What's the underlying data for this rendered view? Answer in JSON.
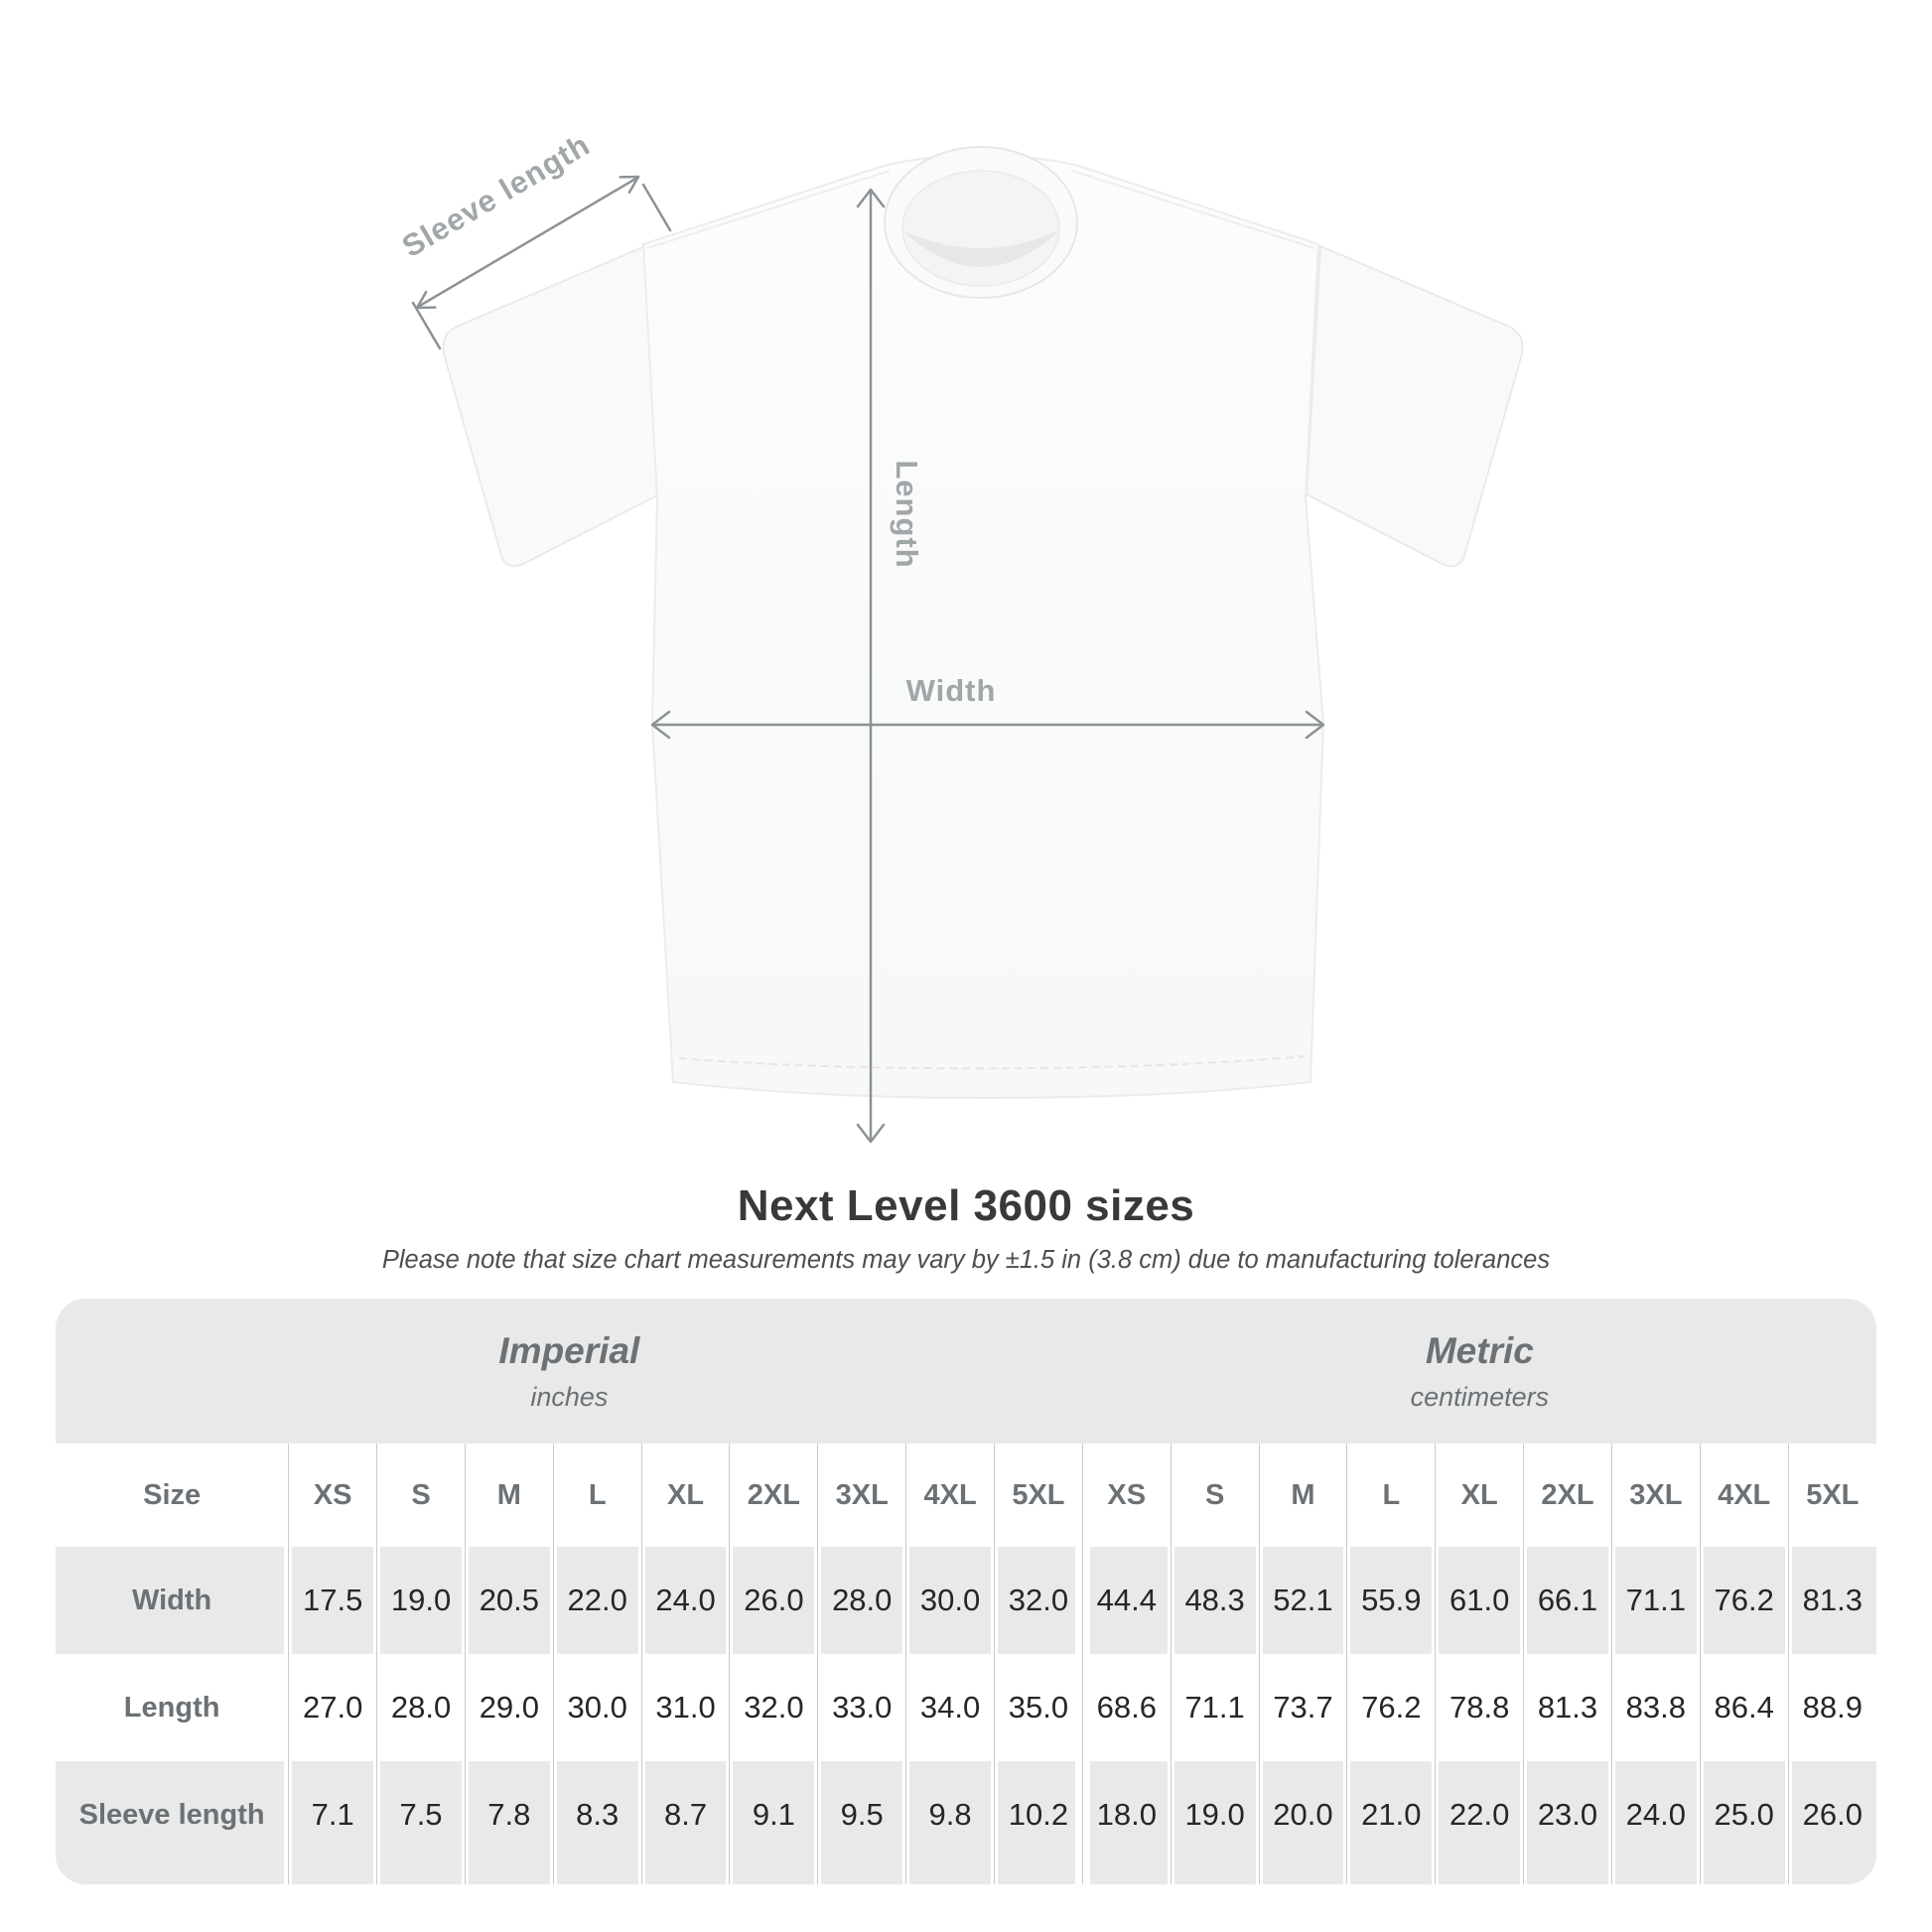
{
  "shirt_diagram": {
    "sleeve_length_label": "Sleeve length",
    "length_label": "Length",
    "width_label": "Width"
  },
  "heading": {
    "title": "Next Level 3600 sizes",
    "subtitle": "Please note that size chart measurements may vary by ±1.5 in (3.8 cm) due to manufacturing tolerances"
  },
  "chart_data": {
    "type": "table",
    "title": "Next Level 3600 sizes",
    "unit_groups": [
      {
        "label": "Imperial",
        "unit": "inches"
      },
      {
        "label": "Metric",
        "unit": "centimeters"
      }
    ],
    "size_column_header": "Size",
    "sizes": [
      "XS",
      "S",
      "M",
      "L",
      "XL",
      "2XL",
      "3XL",
      "4XL",
      "5XL"
    ],
    "rows": [
      {
        "label": "Width",
        "imperial": [
          "17.5",
          "19.0",
          "20.5",
          "22.0",
          "24.0",
          "26.0",
          "28.0",
          "30.0",
          "32.0"
        ],
        "metric": [
          "44.4",
          "48.3",
          "52.1",
          "55.9",
          "61.0",
          "66.1",
          "71.1",
          "76.2",
          "81.3"
        ]
      },
      {
        "label": "Length",
        "imperial": [
          "27.0",
          "28.0",
          "29.0",
          "30.0",
          "31.0",
          "32.0",
          "33.0",
          "34.0",
          "35.0"
        ],
        "metric": [
          "68.6",
          "71.1",
          "73.7",
          "76.2",
          "78.8",
          "81.3",
          "83.8",
          "86.4",
          "88.9"
        ]
      },
      {
        "label": "Sleeve length",
        "imperial": [
          "7.1",
          "7.5",
          "7.8",
          "8.3",
          "8.7",
          "9.1",
          "9.5",
          "9.8",
          "10.2"
        ],
        "metric": [
          "18.0",
          "19.0",
          "20.0",
          "21.0",
          "22.0",
          "23.0",
          "24.0",
          "25.0",
          "26.0"
        ]
      }
    ]
  },
  "colors": {
    "table_card_bg": "#e9e9e9",
    "stripe_white": "#ffffff",
    "column_rule": "#c9caca",
    "label_gray": "#6b7175",
    "value_dark": "#242628",
    "annotation_gray": "#a1a6a9",
    "arrow_gray": "#8d9296",
    "title_dark": "#39393b"
  }
}
